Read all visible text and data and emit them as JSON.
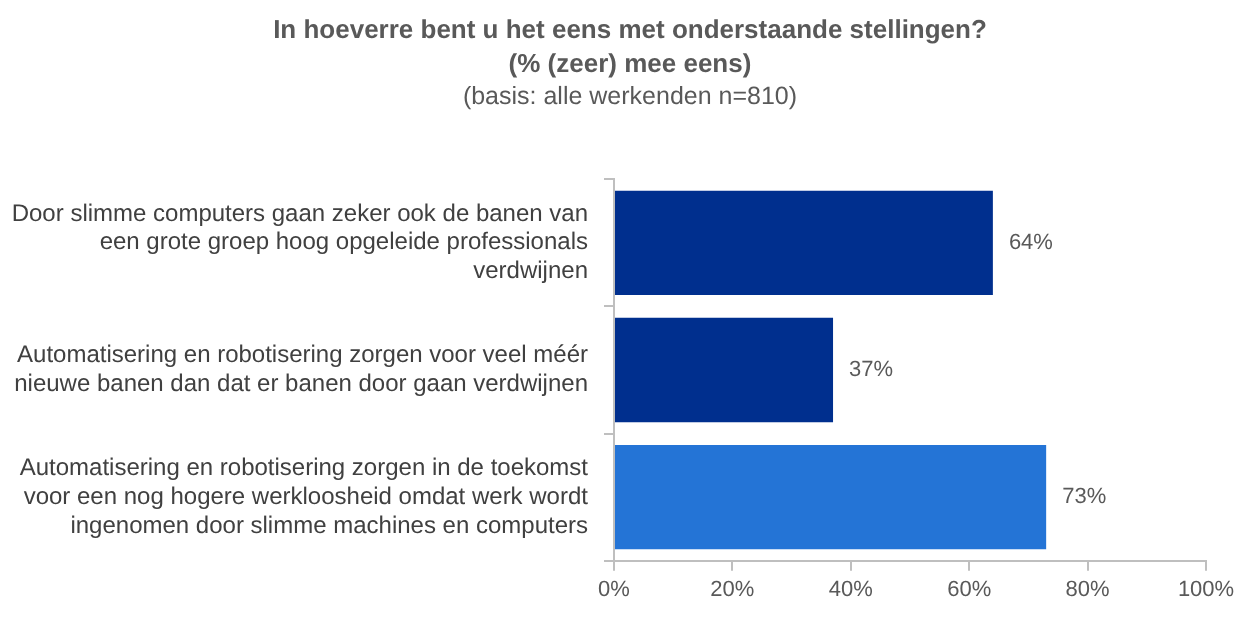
{
  "chart_data": {
    "type": "bar",
    "orientation": "horizontal",
    "title": "In hoeverre bent u het eens met onderstaande stellingen?",
    "subtitle": "(% (zeer) mee eens)",
    "annotations": [
      "(basis: alle werkenden n=810)"
    ],
    "categories": [
      "Door slimme computers gaan zeker ook de banen van een grote groep hoog opgeleide professionals verdwijnen",
      "Automatisering en robotisering zorgen voor veel méér nieuwe banen dan dat er banen door gaan verdwijnen",
      "Automatisering en robotisering zorgen in de toekomst voor een nog hogere werkloosheid omdat werk wordt ingenomen door slimme machines en computers"
    ],
    "values": [
      64,
      37,
      73
    ],
    "colors": [
      "#002f8e",
      "#002f8e",
      "#2474d6"
    ],
    "value_labels": [
      "64%",
      "37%",
      "73%"
    ],
    "xlim": [
      0,
      100
    ],
    "xticks": [
      {
        "value": 0,
        "label": "0%"
      },
      {
        "value": 20,
        "label": "20%"
      },
      {
        "value": 40,
        "label": "40%"
      },
      {
        "value": 60,
        "label": "60%"
      },
      {
        "value": 80,
        "label": "80%"
      },
      {
        "value": 100,
        "label": "100%"
      }
    ],
    "grid": false,
    "legend": false
  }
}
